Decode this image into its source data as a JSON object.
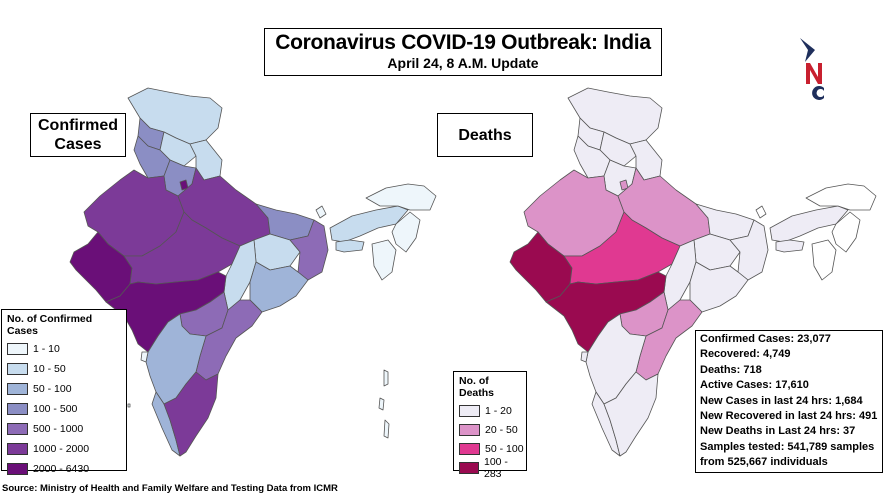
{
  "title": "Coronavirus COVID-19 Outbreak: India",
  "subtitle": "April 24, 8 A.M. Update",
  "panels": {
    "confirmed_label": "Confirmed Cases",
    "deaths_label": "Deaths"
  },
  "confirmed_legend": {
    "title": "No. of Confirmed Cases",
    "items": [
      {
        "label": "1 - 10",
        "color": "#eef6fb"
      },
      {
        "label": "10 - 50",
        "color": "#c7dcee"
      },
      {
        "label": "50 - 100",
        "color": "#9fb4d8"
      },
      {
        "label": "100 - 500",
        "color": "#8b8ec4"
      },
      {
        "label": "500 - 1000",
        "color": "#8d6bb6"
      },
      {
        "label": "1000 - 2000",
        "color": "#7c3a98"
      },
      {
        "label": "2000 - 6430",
        "color": "#6a0f78"
      }
    ]
  },
  "deaths_legend": {
    "title": "No. of Deaths",
    "items": [
      {
        "label": "1 - 20",
        "color": "#eeecf5"
      },
      {
        "label": "20 - 50",
        "color": "#dc93c8"
      },
      {
        "label": "50 - 100",
        "color": "#e03991"
      },
      {
        "label": "100 - 283",
        "color": "#9a0a50"
      }
    ]
  },
  "stats": [
    "Confirmed Cases: 23,077",
    "Recovered: 4,749",
    "Deaths: 718",
    "Active Cases: 17,610",
    "New Cases in last 24 hrs: 1,684",
    "New Recovered in last 24 hrs: 491",
    "New Deaths in Last 24 hrs: 37",
    "Samples tested: 541,789 samples",
    "from 525,667 individuals"
  ],
  "source": "Source: Ministry of Health and Family Welfare and Testing Data from ICMR",
  "logo": {
    "letters": "NC",
    "colors": {
      "navy": "#1f2f5c",
      "red": "#c8202f"
    }
  }
}
